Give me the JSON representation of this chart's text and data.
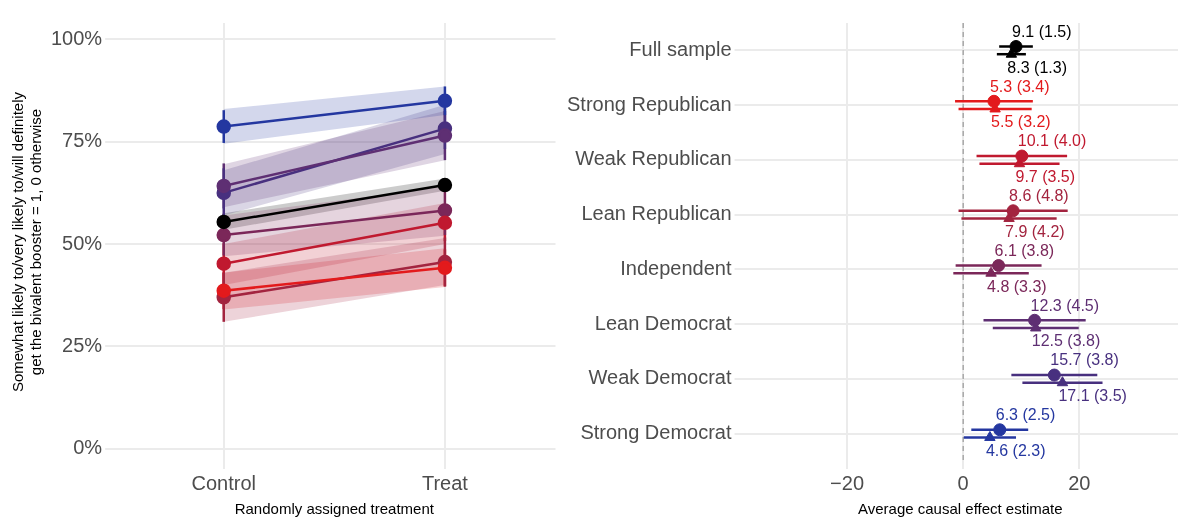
{
  "chart_data": [
    {
      "type": "line",
      "categories": [
        "Control",
        "Treat"
      ],
      "xlabel": "Randomly assigned treatment",
      "ylabel": "Somewhat likely to/very likely to/will definitely\nget the bivalent booster = 1, 0 otherwise",
      "ylim": [
        -3,
        104
      ],
      "yticks": [
        {
          "value": 0,
          "label": "0%"
        },
        {
          "value": 25,
          "label": "25%"
        },
        {
          "value": 50,
          "label": "50%"
        },
        {
          "value": 75,
          "label": "75%"
        },
        {
          "value": 100,
          "label": "100%"
        }
      ],
      "grid": true,
      "marker": "circle",
      "series": [
        {
          "color": "#000000",
          "values": [
            55.4,
            64.4
          ],
          "errors": [
            2,
            1.5
          ],
          "lower": [
            53.5,
            63
          ],
          "upper": [
            57.5,
            66
          ]
        },
        {
          "color": "#e31a1c",
          "values": [
            38.6,
            44.2
          ],
          "errors": [
            4.5,
            4.5
          ],
          "lower": [
            34,
            39.5
          ],
          "upper": [
            43,
            49
          ]
        },
        {
          "color": "#c0192f",
          "values": [
            45.2,
            55.2
          ],
          "errors": [
            5,
            4.5
          ],
          "lower": [
            40,
            50
          ],
          "upper": [
            50,
            60
          ]
        },
        {
          "color": "#a3243f",
          "values": [
            37.0,
            45.6
          ],
          "errors": [
            6,
            6
          ],
          "lower": [
            31,
            40
          ],
          "upper": [
            43,
            51.5
          ]
        },
        {
          "color": "#7b2759",
          "values": [
            52.2,
            58.2
          ],
          "errors": [
            5,
            6
          ],
          "lower": [
            47,
            52
          ],
          "upper": [
            57,
            64
          ]
        },
        {
          "color": "#5e2f73",
          "values": [
            64.2,
            76.5
          ],
          "errors": [
            5.5,
            6
          ],
          "lower": [
            59,
            70.5
          ],
          "upper": [
            69.5,
            82.5
          ]
        },
        {
          "color": "#48307f",
          "values": [
            62.5,
            78.2
          ],
          "errors": [
            6,
            5
          ],
          "lower": [
            57,
            72
          ],
          "upper": [
            68,
            84
          ]
        },
        {
          "color": "#2437a0",
          "values": [
            78.7,
            85.0
          ],
          "errors": [
            4,
            3.5
          ],
          "lower": [
            74.5,
            81.5
          ],
          "upper": [
            83,
            88.5
          ]
        }
      ]
    },
    {
      "type": "scatter",
      "orientation": "horizontal",
      "categories": [
        "Full sample",
        "Strong Republican",
        "Weak Republican",
        "Lean Republican",
        "Independent",
        "Lean Democrat",
        "Weak Democrat",
        "Strong Democrat"
      ],
      "xlabel": "Average causal effect estimate",
      "xlim": [
        -38,
        37
      ],
      "xticks": [
        {
          "value": -20,
          "label": "−20"
        },
        0,
        20
      ],
      "grid": true,
      "ref_lines": [
        {
          "axis": "x",
          "value": 0,
          "color": "#999999",
          "line_style": "dashed"
        }
      ],
      "series": [
        {
          "marker": "circle",
          "colors": [
            "#000000",
            "#e31a1c",
            "#c0192f",
            "#a3243f",
            "#7b2759",
            "#5e2f73",
            "#48307f",
            "#2437a0"
          ],
          "values": [
            9.1,
            5.3,
            10.1,
            8.6,
            6.1,
            12.3,
            15.7,
            6.3
          ],
          "errors": [
            2.9,
            6.7,
            7.8,
            9.4,
            7.4,
            8.8,
            7.4,
            4.9
          ],
          "value_labels": [
            "9.1 (1.5)",
            "5.3 (3.4)",
            "10.1 (4.0)",
            "8.6 (4.8)",
            "6.1 (3.8)",
            "12.3 (4.5)",
            "15.7 (3.8)",
            "6.3 (2.5)"
          ]
        },
        {
          "marker": "triangle",
          "colors": [
            "#000000",
            "#e31a1c",
            "#c0192f",
            "#a3243f",
            "#7b2759",
            "#5e2f73",
            "#48307f",
            "#2437a0"
          ],
          "values": [
            8.3,
            5.5,
            9.7,
            7.9,
            4.8,
            12.5,
            17.1,
            4.6
          ],
          "errors": [
            2.5,
            6.3,
            6.9,
            8.2,
            6.5,
            7.4,
            6.9,
            4.5
          ],
          "value_labels": [
            "8.3 (1.3)",
            "5.5 (3.2)",
            "9.7 (3.5)",
            "7.9 (4.2)",
            "4.8 (3.3)",
            "12.5 (3.8)",
            "17.1 (3.5)",
            "4.6 (2.3)"
          ]
        }
      ]
    }
  ]
}
